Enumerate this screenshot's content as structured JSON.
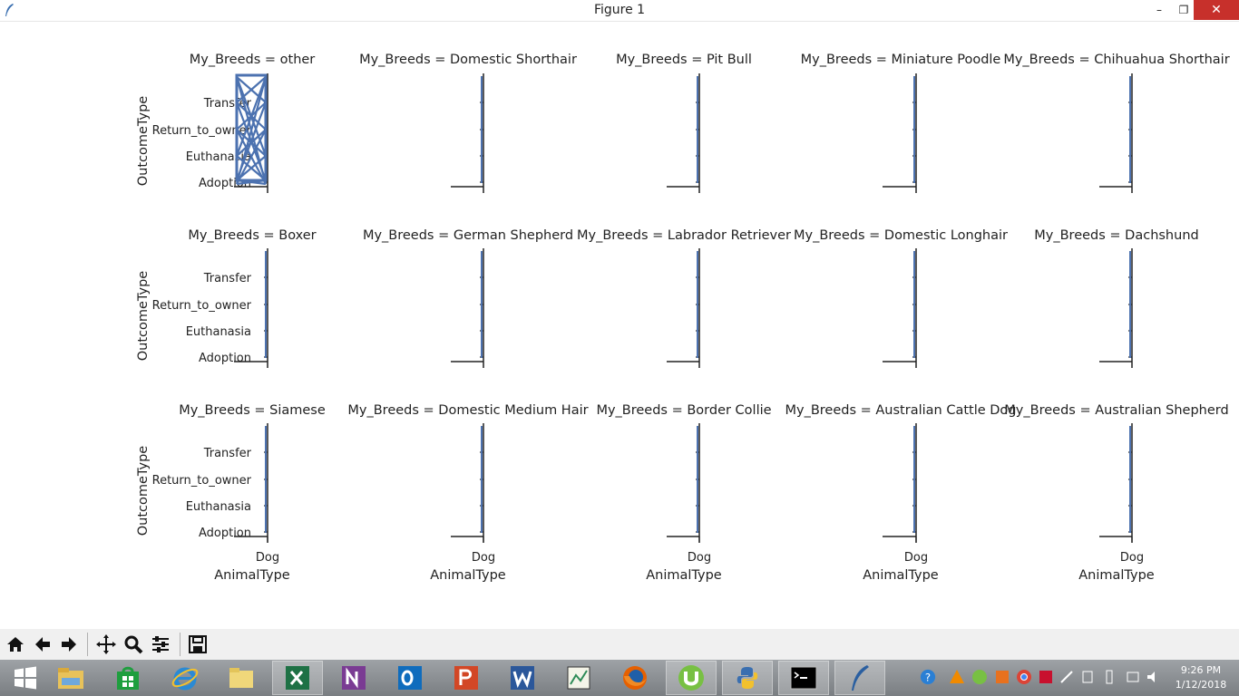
{
  "window": {
    "title": "Figure 1",
    "minimize_glyph": "–",
    "maximize_glyph": "❐",
    "close_glyph": "✕"
  },
  "colors": {
    "series": "#4c72b0",
    "axis": "#222222",
    "text": "#222222"
  },
  "chart_data": {
    "type": "line",
    "col_variable": "My_Breeds",
    "xlabel": "AnimalType",
    "ylabel": "OutcomeType",
    "x_categories": [
      "Dog"
    ],
    "y_categories": [
      "Adoption",
      "Euthanasia",
      "Return_to_owner",
      "Transfer"
    ],
    "panel_titles": [
      "My_Breeds = other",
      "My_Breeds = Domestic Shorthair",
      "My_Breeds = Pit Bull",
      "My_Breeds = Miniature Poodle",
      "My_Breeds = Chihuahua Shorthair",
      "My_Breeds = Boxer",
      "My_Breeds = German Shepherd",
      "My_Breeds = Labrador Retriever",
      "My_Breeds = Domestic Longhair",
      "My_Breeds = Dachshund",
      "My_Breeds = Siamese",
      "My_Breeds = Domestic Medium Hair",
      "My_Breeds = Border Collie",
      "My_Breeds = Australian Cattle Dog",
      "My_Breeds = Australian Shepherd"
    ],
    "grid": false,
    "legend": "none"
  },
  "toolbar": {
    "buttons": [
      "home-icon",
      "back-arrow-icon",
      "forward-arrow-icon",
      "pan-icon",
      "zoom-icon",
      "configure-subplots-icon",
      "save-icon"
    ]
  },
  "taskbar": {
    "apps": [
      "windows-start",
      "file-explorer",
      "store",
      "internet-explorer",
      "folder",
      "excel",
      "onenote",
      "outlook",
      "powerpoint",
      "word",
      "chart-app",
      "firefox",
      "utorrent",
      "python",
      "command-prompt",
      "feather-app"
    ],
    "time": "9:26 PM",
    "date": "1/12/2018"
  }
}
